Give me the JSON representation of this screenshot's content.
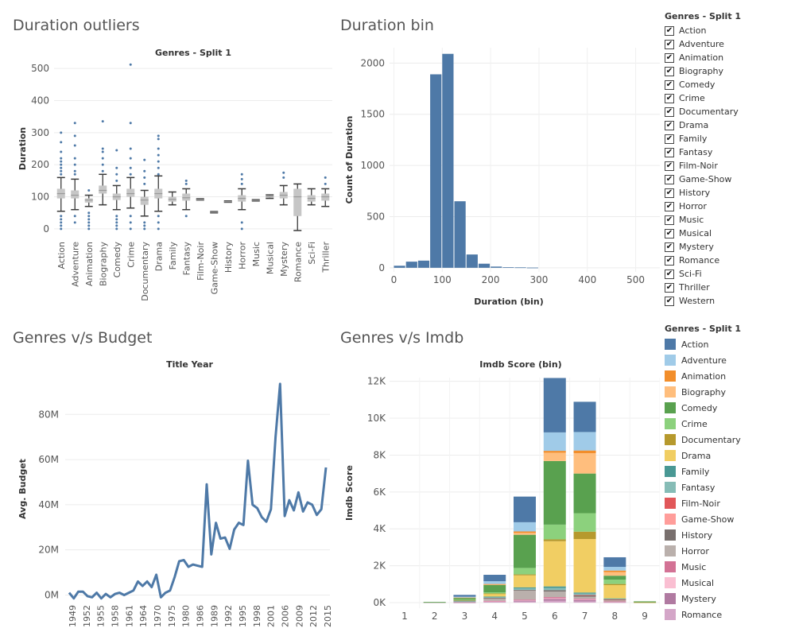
{
  "titles": {
    "outliers": "Duration outliers",
    "bin": "Duration bin",
    "budget": "Genres v/s Budget",
    "imdb": "Genres v/s Imdb"
  },
  "filter_legend": {
    "title": "Genres - Split 1",
    "items": [
      "Action",
      "Adventure",
      "Animation",
      "Biography",
      "Comedy",
      "Crime",
      "Documentary",
      "Drama",
      "Family",
      "Fantasy",
      "Film-Noir",
      "Game-Show",
      "History",
      "Horror",
      "Music",
      "Musical",
      "Mystery",
      "Romance",
      "Sci-Fi",
      "Thriller",
      "Western"
    ]
  },
  "color_legend": {
    "title": "Genres - Split 1",
    "items": [
      {
        "label": "Action",
        "color": "#4e79a7"
      },
      {
        "label": "Adventure",
        "color": "#a0cbe8"
      },
      {
        "label": "Animation",
        "color": "#f28e2b"
      },
      {
        "label": "Biography",
        "color": "#ffbe7d"
      },
      {
        "label": "Comedy",
        "color": "#59a14f"
      },
      {
        "label": "Crime",
        "color": "#8cd17d"
      },
      {
        "label": "Documentary",
        "color": "#b6992d"
      },
      {
        "label": "Drama",
        "color": "#f1ce63"
      },
      {
        "label": "Family",
        "color": "#499894"
      },
      {
        "label": "Fantasy",
        "color": "#86bcb6"
      },
      {
        "label": "Film-Noir",
        "color": "#e15759"
      },
      {
        "label": "Game-Show",
        "color": "#ff9d9a"
      },
      {
        "label": "History",
        "color": "#79706e"
      },
      {
        "label": "Horror",
        "color": "#bab0ac"
      },
      {
        "label": "Music",
        "color": "#d37295"
      },
      {
        "label": "Musical",
        "color": "#fabfd2"
      },
      {
        "label": "Mystery",
        "color": "#b07aa1"
      },
      {
        "label": "Romance",
        "color": "#d4a6c8"
      }
    ]
  },
  "chart_data": [
    {
      "type": "boxplot",
      "title": "Genres - Split 1",
      "ylabel": "Duration",
      "ylim": [
        -20,
        520
      ],
      "yticks": [
        0,
        100,
        200,
        300,
        400,
        500
      ],
      "point_color": "#4e79a7",
      "categories": [
        "Action",
        "Adventure",
        "Animation",
        "Biography",
        "Comedy",
        "Crime",
        "Documentary",
        "Drama",
        "Family",
        "Fantasy",
        "Film-Noir",
        "Game-Show",
        "History",
        "Horror",
        "Music",
        "Musical",
        "Mystery",
        "Romance",
        "Sci-Fi",
        "Thriller"
      ],
      "boxes": [
        {
          "min": 55,
          "q1": 95,
          "median": 110,
          "q3": 125,
          "max": 160,
          "outliers": [
            0,
            10,
            20,
            30,
            40,
            170,
            180,
            190,
            200,
            210,
            220,
            240,
            270,
            300
          ]
        },
        {
          "min": 60,
          "q1": 95,
          "median": 105,
          "q3": 120,
          "max": 155,
          "outliers": [
            20,
            40,
            170,
            180,
            200,
            220,
            260,
            290,
            330
          ]
        },
        {
          "min": 70,
          "q1": 82,
          "median": 90,
          "q3": 95,
          "max": 105,
          "outliers": [
            0,
            10,
            20,
            30,
            40,
            50,
            120
          ]
        },
        {
          "min": 75,
          "q1": 110,
          "median": 120,
          "q3": 135,
          "max": 170,
          "outliers": [
            180,
            200,
            220,
            240,
            250,
            335
          ]
        },
        {
          "min": 60,
          "q1": 90,
          "median": 100,
          "q3": 110,
          "max": 135,
          "outliers": [
            0,
            10,
            20,
            30,
            40,
            150,
            170,
            190,
            245
          ]
        },
        {
          "min": 65,
          "q1": 100,
          "median": 110,
          "q3": 125,
          "max": 160,
          "outliers": [
            0,
            20,
            40,
            170,
            190,
            220,
            250,
            330,
            512
          ]
        },
        {
          "min": 40,
          "q1": 75,
          "median": 90,
          "q3": 100,
          "max": 120,
          "outliers": [
            0,
            10,
            20,
            140,
            160,
            180,
            215
          ]
        },
        {
          "min": 55,
          "q1": 95,
          "median": 110,
          "q3": 125,
          "max": 165,
          "outliers": [
            0,
            20,
            40,
            170,
            190,
            210,
            230,
            250,
            280,
            290
          ]
        },
        {
          "min": 75,
          "q1": 85,
          "median": 92,
          "q3": 100,
          "max": 115,
          "outliers": []
        },
        {
          "min": 60,
          "q1": 88,
          "median": 97,
          "q3": 110,
          "max": 125,
          "outliers": [
            40,
            140,
            150
          ]
        },
        {
          "min": 90,
          "q1": 91,
          "median": 92,
          "q3": 93,
          "max": 94,
          "outliers": []
        },
        {
          "min": 50,
          "q1": 51,
          "median": 52,
          "q3": 53,
          "max": 54,
          "outliers": []
        },
        {
          "min": 83,
          "q1": 84,
          "median": 85,
          "q3": 86,
          "max": 87,
          "outliers": []
        },
        {
          "min": 60,
          "q1": 85,
          "median": 95,
          "q3": 105,
          "max": 125,
          "outliers": [
            0,
            20,
            140,
            155,
            170
          ]
        },
        {
          "min": 87,
          "q1": 88,
          "median": 89,
          "q3": 90,
          "max": 91,
          "outliers": []
        },
        {
          "min": 95,
          "q1": 97,
          "median": 100,
          "q3": 104,
          "max": 106,
          "outliers": []
        },
        {
          "min": 75,
          "q1": 95,
          "median": 105,
          "q3": 115,
          "max": 135,
          "outliers": [
            160,
            175
          ]
        },
        {
          "min": -5,
          "q1": 40,
          "median": 100,
          "q3": 125,
          "max": 140,
          "outliers": []
        },
        {
          "min": 75,
          "q1": 85,
          "median": 95,
          "q3": 105,
          "max": 125,
          "outliers": []
        },
        {
          "min": 70,
          "q1": 88,
          "median": 100,
          "q3": 110,
          "max": 125,
          "outliers": [
            140,
            160
          ]
        }
      ]
    },
    {
      "type": "bar",
      "title": "",
      "xlabel": "Duration (bin)",
      "ylabel": "Count of Duration",
      "bin_width": 25,
      "x_start": 0,
      "xlim": [
        0,
        550
      ],
      "xticks": [
        0,
        100,
        200,
        300,
        400,
        500
      ],
      "ylim": [
        -40,
        2150
      ],
      "yticks": [
        0,
        500,
        1000,
        1500,
        2000
      ],
      "values": [
        20,
        60,
        70,
        1890,
        2090,
        650,
        130,
        40,
        12,
        5,
        4,
        2
      ],
      "color": "#4e79a7"
    },
    {
      "type": "line",
      "title": "Title Year",
      "ylabel": "Avg. Budget",
      "x_ticks": [
        1949,
        1952,
        1955,
        1958,
        1961,
        1964,
        1970,
        1975,
        1980,
        1986,
        1989,
        1992,
        1995,
        1998,
        2001,
        2006,
        2009,
        2012,
        2015
      ],
      "x_tick_labels": [
        "1949",
        "1952",
        "1955",
        "1958",
        "1961",
        "1964",
        "1970",
        "1975",
        "1980",
        "1986",
        "1989",
        "1992",
        "1995",
        "1998",
        "2001",
        "2006",
        "2009",
        "2012",
        "2015"
      ],
      "y_ticks": [
        0,
        20000000,
        40000000,
        60000000,
        80000000
      ],
      "y_tick_labels": [
        "0M",
        "20M",
        "40M",
        "60M",
        "80M"
      ],
      "ylim": [
        -3000000,
        97000000
      ],
      "color": "#4e79a7",
      "values": [
        1,
        -1.5,
        1.5,
        1.5,
        -0.5,
        -1,
        1,
        -1.5,
        0.5,
        -1,
        0.5,
        1,
        0,
        1,
        2,
        6,
        4,
        6,
        3.5,
        9,
        -1,
        1,
        2,
        8,
        15,
        15.5,
        12.5,
        13.5,
        13,
        12.5,
        49,
        18,
        32,
        25,
        25.5,
        20.5,
        29,
        32,
        31,
        59.5,
        40,
        38.5,
        34.5,
        32.5,
        38,
        70,
        93.5,
        35,
        42,
        37.5,
        45.5,
        37,
        41,
        40,
        35.5,
        38,
        56.5
      ]
    },
    {
      "type": "stacked-bar",
      "title": "Imdb Score (bin)",
      "ylabel": "Imdb Score",
      "categories": [
        "1",
        "2",
        "3",
        "4",
        "5",
        "6",
        "7",
        "8",
        "9"
      ],
      "ylim": [
        -300,
        12200
      ],
      "yticks": [
        0,
        2000,
        4000,
        6000,
        8000,
        10000,
        12000
      ],
      "ytick_labels": [
        "0K",
        "2K",
        "4K",
        "6K",
        "8K",
        "10K",
        "12K"
      ],
      "series": [
        {
          "name": "Romance",
          "color": "#d4a6c8",
          "values": [
            0,
            0,
            10,
            40,
            60,
            100,
            70,
            20,
            0
          ]
        },
        {
          "name": "Mystery",
          "color": "#b07aa1",
          "values": [
            0,
            0,
            10,
            30,
            60,
            100,
            80,
            30,
            0
          ]
        },
        {
          "name": "Musical",
          "color": "#fabfd2",
          "values": [
            0,
            0,
            0,
            10,
            20,
            40,
            30,
            10,
            0
          ]
        },
        {
          "name": "Music",
          "color": "#d37295",
          "values": [
            0,
            0,
            0,
            20,
            30,
            60,
            40,
            10,
            0
          ]
        },
        {
          "name": "Horror",
          "color": "#bab0ac",
          "values": [
            0,
            10,
            60,
            150,
            500,
            300,
            100,
            50,
            0
          ]
        },
        {
          "name": "History",
          "color": "#79706e",
          "values": [
            0,
            0,
            0,
            10,
            20,
            80,
            80,
            40,
            0
          ]
        },
        {
          "name": "Game-Show",
          "color": "#ff9d9a",
          "values": [
            0,
            0,
            0,
            0,
            0,
            0,
            0,
            0,
            0
          ]
        },
        {
          "name": "Film-Noir",
          "color": "#e15759",
          "values": [
            0,
            0,
            0,
            0,
            0,
            0,
            10,
            10,
            0
          ]
        },
        {
          "name": "Fantasy",
          "color": "#86bcb6",
          "values": [
            0,
            0,
            20,
            40,
            80,
            120,
            80,
            40,
            0
          ]
        },
        {
          "name": "Family",
          "color": "#499894",
          "values": [
            0,
            0,
            10,
            30,
            60,
            80,
            60,
            20,
            0
          ]
        },
        {
          "name": "Drama",
          "color": "#f1ce63",
          "values": [
            0,
            0,
            30,
            150,
            650,
            2450,
            2900,
            720,
            0
          ]
        },
        {
          "name": "Documentary",
          "color": "#b6992d",
          "values": [
            0,
            0,
            10,
            20,
            50,
            100,
            400,
            60,
            20
          ]
        },
        {
          "name": "Crime",
          "color": "#8cd17d",
          "values": [
            0,
            0,
            20,
            60,
            350,
            800,
            1000,
            240,
            0
          ]
        },
        {
          "name": "Comedy",
          "color": "#59a14f",
          "values": [
            0,
            30,
            100,
            400,
            1800,
            3450,
            2150,
            210,
            50
          ]
        },
        {
          "name": "Biography",
          "color": "#ffbe7d",
          "values": [
            0,
            0,
            10,
            30,
            100,
            450,
            1100,
            200,
            0
          ]
        },
        {
          "name": "Animation",
          "color": "#f28e2b",
          "values": [
            0,
            0,
            0,
            20,
            80,
            100,
            150,
            80,
            0
          ]
        },
        {
          "name": "Adventure",
          "color": "#a0cbe8",
          "values": [
            0,
            0,
            40,
            150,
            500,
            1000,
            1000,
            200,
            0
          ]
        },
        {
          "name": "Action",
          "color": "#4e79a7",
          "values": [
            0,
            0,
            100,
            350,
            1390,
            2950,
            1640,
            520,
            0
          ]
        }
      ]
    }
  ]
}
